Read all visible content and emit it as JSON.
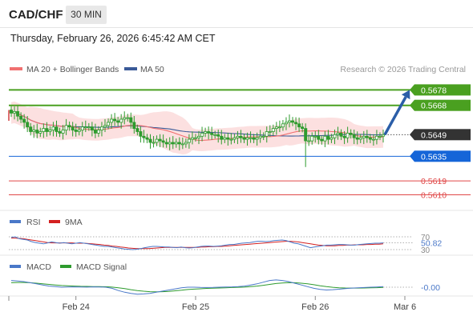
{
  "header": {
    "symbol": "CAD/CHF",
    "timeframe": "30 MIN",
    "datetime": "Thursday, February 26, 2026 6:45:42 AM CET"
  },
  "legend": {
    "ma20": "MA 20 + Bollinger Bands",
    "ma50": "MA 50",
    "copyright": "Research © 2026 Trading Central"
  },
  "colors": {
    "candle": "#2e9b2e",
    "ma20": "#f07070",
    "ma50": "#3a5a98",
    "bollinger_fill": "#fbd6d6",
    "resistance": "#4aa020",
    "support_blue": "#1565d8",
    "support_red": "#e04848",
    "current": "#333333",
    "arrow": "#2b5ea8",
    "rsi": "#4a78c8",
    "rsi_ma": "#d42020",
    "macd": "#4a78c8",
    "macd_signal": "#2e9b2e"
  },
  "chart_data": [
    {
      "type": "candlestick",
      "ylim": [
        0.5603,
        0.5686
      ],
      "x_ticks": [
        "Feb 24",
        "Feb 25",
        "Feb 26",
        "Mar 6"
      ],
      "levels": [
        {
          "value": "0.5678",
          "kind": "resistance"
        },
        {
          "value": "0.5668",
          "kind": "resistance"
        },
        {
          "value": "0.5649",
          "kind": "current"
        },
        {
          "value": "0.5635",
          "kind": "support"
        },
        {
          "value": "0.5619",
          "kind": "support-minor"
        },
        {
          "value": "0.5610",
          "kind": "support-minor"
        }
      ],
      "forecast_arrow": {
        "from": 0.5649,
        "to": 0.5678
      },
      "close": [
        0.5663,
        0.5664,
        0.5661,
        0.5659,
        0.5657,
        0.5654,
        0.5651,
        0.5652,
        0.565,
        0.5651,
        0.5653,
        0.5651,
        0.5652,
        0.5654,
        0.5651,
        0.565,
        0.5652,
        0.5655,
        0.5654,
        0.5652,
        0.5651,
        0.5652,
        0.5654,
        0.5654,
        0.5654,
        0.5652,
        0.565,
        0.5652,
        0.5654,
        0.5655,
        0.5657,
        0.5659,
        0.5658,
        0.5657,
        0.5659,
        0.566,
        0.566,
        0.5657,
        0.5653,
        0.5651,
        0.5648,
        0.5647,
        0.5646,
        0.5644,
        0.5644,
        0.5646,
        0.5645,
        0.5644,
        0.5643,
        0.5644,
        0.5643,
        0.5644,
        0.5643,
        0.5643,
        0.5644,
        0.5646,
        0.5647,
        0.5647,
        0.5648,
        0.565,
        0.5651,
        0.565,
        0.5649,
        0.5649,
        0.5648,
        0.5646,
        0.5647,
        0.5646,
        0.5646,
        0.5647,
        0.5648,
        0.5647,
        0.5646,
        0.5647,
        0.5647,
        0.5646,
        0.5647,
        0.5648,
        0.5648,
        0.5651,
        0.5651,
        0.5653,
        0.5654,
        0.5654,
        0.5656,
        0.5657,
        0.5658,
        0.5657,
        0.5656,
        0.5654,
        0.5653,
        0.5645,
        0.5645,
        0.5648,
        0.5648,
        0.5646,
        0.5645,
        0.5648,
        0.5646,
        0.5647,
        0.5649,
        0.565,
        0.5648,
        0.5647,
        0.565,
        0.5649,
        0.5647,
        0.5646,
        0.5647,
        0.5648,
        0.5647,
        0.5646,
        0.5646,
        0.5648,
        0.5648,
        0.5649
      ]
    },
    {
      "type": "line",
      "title": "RSI",
      "series": [
        {
          "name": "RSI"
        },
        {
          "name": "9MA"
        }
      ],
      "levels": [
        "70",
        "30"
      ],
      "last_value": "50.82",
      "values": [
        68,
        70,
        64,
        62,
        60,
        55,
        52,
        50,
        48,
        51,
        54,
        52,
        50,
        52,
        50,
        48,
        50,
        52,
        50,
        48,
        46,
        44,
        42,
        40,
        40,
        38,
        36,
        34,
        32,
        31,
        30,
        31,
        33,
        36,
        38,
        40,
        40,
        39,
        38,
        38,
        37,
        36,
        38,
        36,
        35,
        36,
        38,
        40,
        41,
        41,
        40,
        41,
        42,
        44,
        46,
        46,
        48,
        50,
        51,
        52,
        54,
        56,
        56,
        55,
        56,
        58,
        59,
        60,
        58,
        54,
        50,
        48,
        44,
        40,
        36,
        38,
        40,
        42,
        44,
        44,
        45,
        46,
        46,
        45,
        44,
        44,
        46,
        47,
        48,
        49,
        50,
        50,
        51
      ],
      "ma_values": [
        66,
        66,
        65,
        64,
        62,
        60,
        58,
        56,
        54,
        52,
        51,
        51,
        51,
        51,
        51,
        51,
        50,
        50,
        50,
        49,
        48,
        47,
        46,
        44,
        43,
        41,
        40,
        38,
        37,
        35,
        34,
        33,
        33,
        33,
        33,
        34,
        35,
        36,
        37,
        37,
        37,
        37,
        37,
        37,
        37,
        37,
        37,
        38,
        38,
        39,
        39,
        40,
        40,
        41,
        42,
        43,
        44,
        45,
        46,
        47,
        48,
        49,
        50,
        51,
        52,
        53,
        54,
        55,
        56,
        56,
        55,
        54,
        52,
        50,
        48,
        46,
        44,
        43,
        42,
        42,
        42,
        43,
        43,
        44,
        44,
        45,
        45,
        45,
        46,
        46,
        47,
        47,
        48
      ]
    },
    {
      "type": "line",
      "title": "MACD",
      "series": [
        {
          "name": "MACD"
        },
        {
          "name": "MACD Signal"
        }
      ],
      "last_value": "-0.00",
      "values": [
        0.6,
        0.55,
        0.5,
        0.4,
        0.3,
        0.2,
        0.1,
        0.05,
        0,
        0.02,
        0.03,
        0.02,
        0.01,
        0.03,
        0.02,
        0,
        -0.1,
        -0.3,
        -0.45,
        -0.55,
        -0.62,
        -0.6,
        -0.55,
        -0.45,
        -0.35,
        -0.25,
        -0.15,
        -0.05,
        0,
        0,
        -0.02,
        -0.03,
        -0.02,
        0,
        0.02,
        0.03,
        0.05,
        0.1,
        0.2,
        0.3,
        0.45,
        0.6,
        0.65,
        0.6,
        0.5,
        0.35,
        0.2,
        0.05,
        -0.1,
        -0.2,
        -0.25,
        -0.22,
        -0.18,
        -0.12,
        -0.08,
        -0.05,
        -0.03,
        0,
        0.02,
        0.05
      ],
      "signal_values": [
        0.4,
        0.42,
        0.42,
        0.4,
        0.36,
        0.31,
        0.25,
        0.2,
        0.15,
        0.12,
        0.1,
        0.08,
        0.07,
        0.06,
        0.05,
        0.04,
        0.01,
        -0.05,
        -0.13,
        -0.22,
        -0.3,
        -0.36,
        -0.4,
        -0.41,
        -0.4,
        -0.37,
        -0.32,
        -0.27,
        -0.21,
        -0.17,
        -0.14,
        -0.11,
        -0.09,
        -0.07,
        -0.05,
        -0.03,
        -0.01,
        0.01,
        0.05,
        0.1,
        0.17,
        0.25,
        0.33,
        0.38,
        0.41,
        0.4,
        0.36,
        0.3,
        0.22,
        0.13,
        0.05,
        -0.01,
        -0.05,
        -0.07,
        -0.08,
        -0.08,
        -0.07,
        -0.05,
        -0.04,
        -0.02
      ]
    }
  ]
}
